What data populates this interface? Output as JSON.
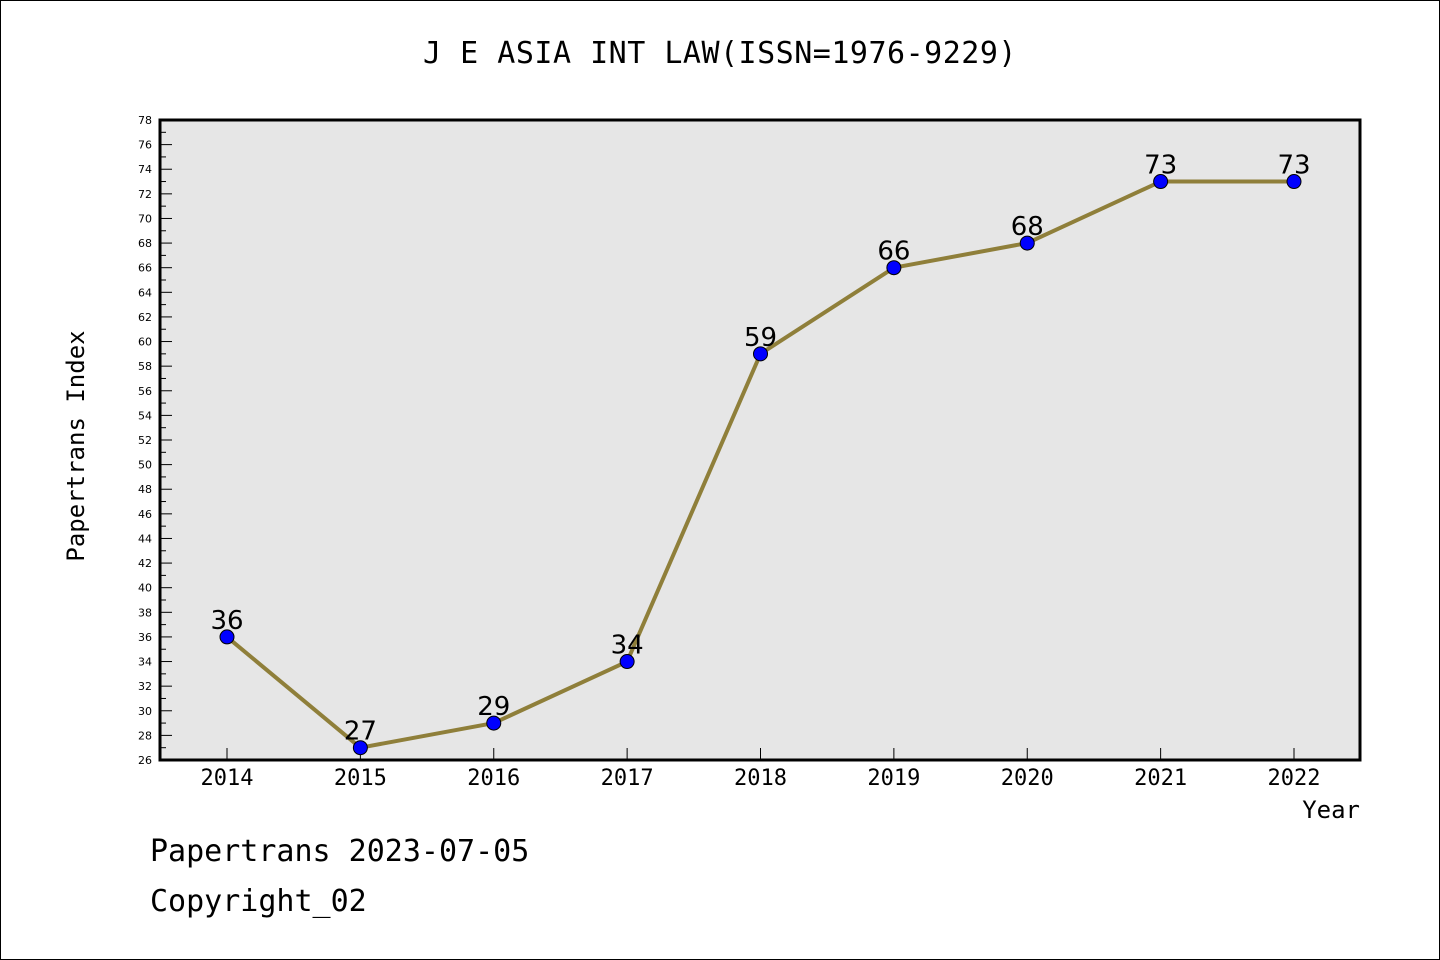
{
  "chart_data": {
    "type": "line",
    "title": "J E ASIA INT LAW(ISSN=1976-9229)",
    "xlabel": "Year",
    "ylabel": "Papertrans Index",
    "x": [
      "2014",
      "2015",
      "2016",
      "2017",
      "2018",
      "2019",
      "2020",
      "2021",
      "2022"
    ],
    "series": [
      {
        "values": [
          36,
          27,
          29,
          34,
          59,
          66,
          68,
          73,
          73
        ]
      }
    ],
    "ylim": [
      26,
      78
    ],
    "yticks": [
      26,
      28,
      30,
      32,
      34,
      36,
      38,
      40,
      42,
      44,
      46,
      48,
      50,
      52,
      54,
      56,
      58,
      60,
      62,
      64,
      66,
      68,
      70,
      72,
      74,
      76,
      78
    ],
    "grid": false,
    "colors": {
      "line": "#8f7f3a",
      "marker": "#0000ff",
      "plot_bg": "#e6e6e6"
    }
  },
  "footer": {
    "line1": "Papertrans 2023-07-05",
    "line2": "Copyright_02"
  }
}
